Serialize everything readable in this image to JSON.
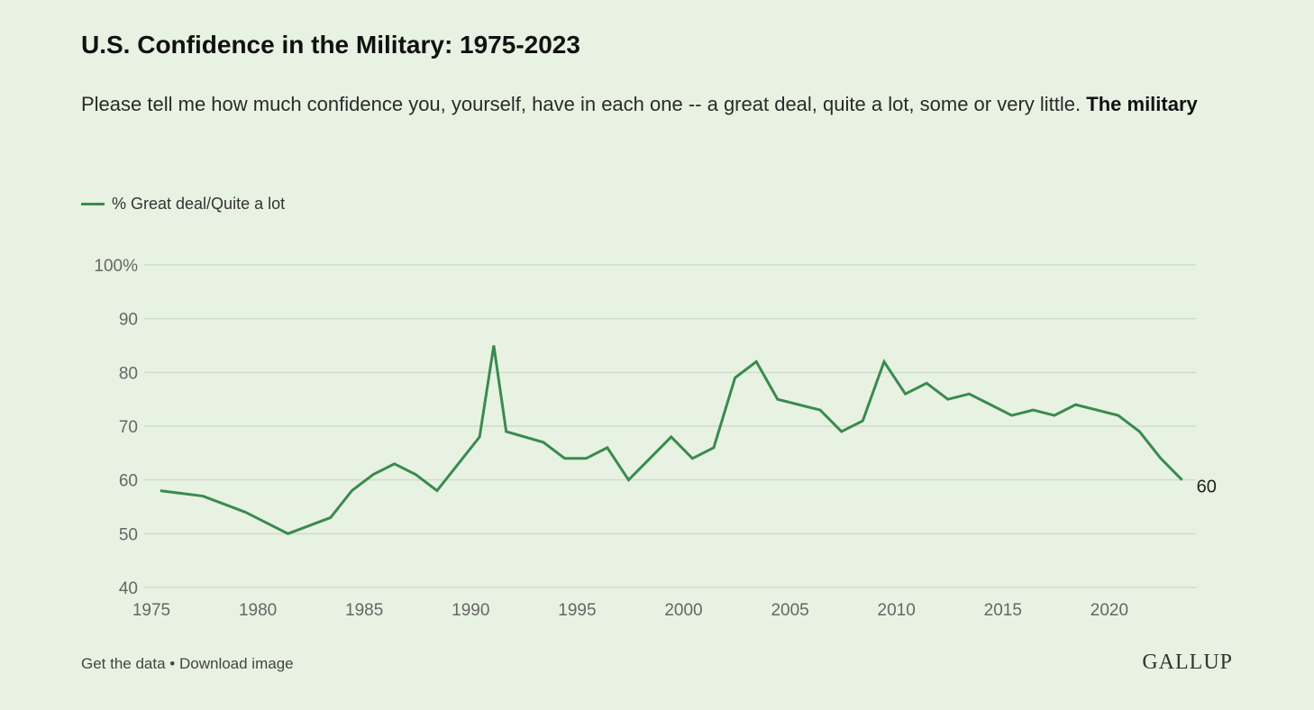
{
  "chart_data": {
    "type": "line",
    "title": "U.S. Confidence in the Military: 1975-2023",
    "subtitle": "Please tell me how much confidence you, yourself, have in each one -- a great deal, quite a lot, some or very little.",
    "subtitle_bold": "The military",
    "ylim": [
      40,
      100
    ],
    "yticks": [
      "100%",
      "90",
      "80",
      "70",
      "60",
      "50",
      "40"
    ],
    "xticks": [
      "1975",
      "1980",
      "1985",
      "1990",
      "1995",
      "2000",
      "2005",
      "2010",
      "2015",
      "2020"
    ],
    "grid": "horizontal",
    "legend_position": "top-left",
    "color": "#3a8a50",
    "end_label": "60",
    "series": [
      {
        "name": "% Great deal/Quite a lot",
        "points": [
          [
            "1975-06",
            58
          ],
          [
            "1977-06",
            57
          ],
          [
            "1979-06",
            54
          ],
          [
            "1981-06",
            50
          ],
          [
            "1983-06",
            53
          ],
          [
            "1984-06",
            58
          ],
          [
            "1985-06",
            61
          ],
          [
            "1986-06",
            63
          ],
          [
            "1987-06",
            61
          ],
          [
            "1988-06",
            58
          ],
          [
            "1990-06",
            68
          ],
          [
            "1991-02",
            85
          ],
          [
            "1991-09",
            69
          ],
          [
            "1993-06",
            67
          ],
          [
            "1994-06",
            64
          ],
          [
            "1995-06",
            64
          ],
          [
            "1996-06",
            66
          ],
          [
            "1997-06",
            60
          ],
          [
            "1999-06",
            68
          ],
          [
            "2000-06",
            64
          ],
          [
            "2001-06",
            66
          ],
          [
            "2002-06",
            79
          ],
          [
            "2003-06",
            82
          ],
          [
            "2004-06",
            75
          ],
          [
            "2005-06",
            74
          ],
          [
            "2006-06",
            73
          ],
          [
            "2007-06",
            69
          ],
          [
            "2008-06",
            71
          ],
          [
            "2009-06",
            82
          ],
          [
            "2010-06",
            76
          ],
          [
            "2011-06",
            78
          ],
          [
            "2012-06",
            75
          ],
          [
            "2013-06",
            76
          ],
          [
            "2014-06",
            74
          ],
          [
            "2015-06",
            72
          ],
          [
            "2016-06",
            73
          ],
          [
            "2017-06",
            72
          ],
          [
            "2018-06",
            74
          ],
          [
            "2019-06",
            73
          ],
          [
            "2020-06",
            72
          ],
          [
            "2021-06",
            69
          ],
          [
            "2022-06",
            64
          ],
          [
            "2023-06",
            60
          ]
        ]
      }
    ]
  },
  "footer": {
    "get_data": "Get the data",
    "sep": " • ",
    "download": "Download image"
  },
  "logo": "GALLUP"
}
